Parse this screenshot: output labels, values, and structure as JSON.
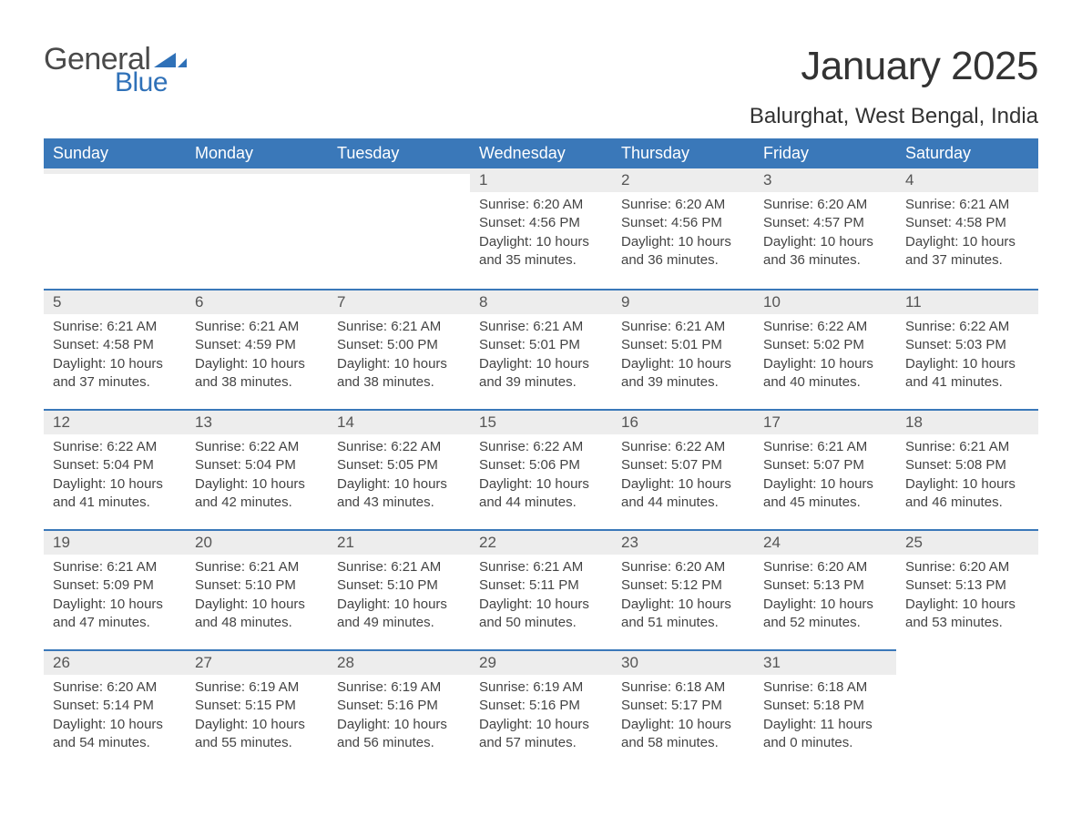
{
  "logo": {
    "general": "General",
    "blue": "Blue",
    "general_color": "#4a4a4a",
    "blue_color": "#2f71b8",
    "flag_color": "#2f71b8"
  },
  "title": "January 2025",
  "location": "Balurghat, West Bengal, India",
  "theme": {
    "header_bg": "#3a78b9",
    "header_text": "#ffffff",
    "daynum_bg": "#ededed",
    "row_divider": "#3a78b9",
    "body_text": "#444444",
    "page_bg": "#ffffff"
  },
  "weekdays": [
    "Sunday",
    "Monday",
    "Tuesday",
    "Wednesday",
    "Thursday",
    "Friday",
    "Saturday"
  ],
  "weeks": [
    [
      null,
      null,
      null,
      {
        "d": "1",
        "sunrise": "6:20 AM",
        "sunset": "4:56 PM",
        "daylight": "10 hours and 35 minutes."
      },
      {
        "d": "2",
        "sunrise": "6:20 AM",
        "sunset": "4:56 PM",
        "daylight": "10 hours and 36 minutes."
      },
      {
        "d": "3",
        "sunrise": "6:20 AM",
        "sunset": "4:57 PM",
        "daylight": "10 hours and 36 minutes."
      },
      {
        "d": "4",
        "sunrise": "6:21 AM",
        "sunset": "4:58 PM",
        "daylight": "10 hours and 37 minutes."
      }
    ],
    [
      {
        "d": "5",
        "sunrise": "6:21 AM",
        "sunset": "4:58 PM",
        "daylight": "10 hours and 37 minutes."
      },
      {
        "d": "6",
        "sunrise": "6:21 AM",
        "sunset": "4:59 PM",
        "daylight": "10 hours and 38 minutes."
      },
      {
        "d": "7",
        "sunrise": "6:21 AM",
        "sunset": "5:00 PM",
        "daylight": "10 hours and 38 minutes."
      },
      {
        "d": "8",
        "sunrise": "6:21 AM",
        "sunset": "5:01 PM",
        "daylight": "10 hours and 39 minutes."
      },
      {
        "d": "9",
        "sunrise": "6:21 AM",
        "sunset": "5:01 PM",
        "daylight": "10 hours and 39 minutes."
      },
      {
        "d": "10",
        "sunrise": "6:22 AM",
        "sunset": "5:02 PM",
        "daylight": "10 hours and 40 minutes."
      },
      {
        "d": "11",
        "sunrise": "6:22 AM",
        "sunset": "5:03 PM",
        "daylight": "10 hours and 41 minutes."
      }
    ],
    [
      {
        "d": "12",
        "sunrise": "6:22 AM",
        "sunset": "5:04 PM",
        "daylight": "10 hours and 41 minutes."
      },
      {
        "d": "13",
        "sunrise": "6:22 AM",
        "sunset": "5:04 PM",
        "daylight": "10 hours and 42 minutes."
      },
      {
        "d": "14",
        "sunrise": "6:22 AM",
        "sunset": "5:05 PM",
        "daylight": "10 hours and 43 minutes."
      },
      {
        "d": "15",
        "sunrise": "6:22 AM",
        "sunset": "5:06 PM",
        "daylight": "10 hours and 44 minutes."
      },
      {
        "d": "16",
        "sunrise": "6:22 AM",
        "sunset": "5:07 PM",
        "daylight": "10 hours and 44 minutes."
      },
      {
        "d": "17",
        "sunrise": "6:21 AM",
        "sunset": "5:07 PM",
        "daylight": "10 hours and 45 minutes."
      },
      {
        "d": "18",
        "sunrise": "6:21 AM",
        "sunset": "5:08 PM",
        "daylight": "10 hours and 46 minutes."
      }
    ],
    [
      {
        "d": "19",
        "sunrise": "6:21 AM",
        "sunset": "5:09 PM",
        "daylight": "10 hours and 47 minutes."
      },
      {
        "d": "20",
        "sunrise": "6:21 AM",
        "sunset": "5:10 PM",
        "daylight": "10 hours and 48 minutes."
      },
      {
        "d": "21",
        "sunrise": "6:21 AM",
        "sunset": "5:10 PM",
        "daylight": "10 hours and 49 minutes."
      },
      {
        "d": "22",
        "sunrise": "6:21 AM",
        "sunset": "5:11 PM",
        "daylight": "10 hours and 50 minutes."
      },
      {
        "d": "23",
        "sunrise": "6:20 AM",
        "sunset": "5:12 PM",
        "daylight": "10 hours and 51 minutes."
      },
      {
        "d": "24",
        "sunrise": "6:20 AM",
        "sunset": "5:13 PM",
        "daylight": "10 hours and 52 minutes."
      },
      {
        "d": "25",
        "sunrise": "6:20 AM",
        "sunset": "5:13 PM",
        "daylight": "10 hours and 53 minutes."
      }
    ],
    [
      {
        "d": "26",
        "sunrise": "6:20 AM",
        "sunset": "5:14 PM",
        "daylight": "10 hours and 54 minutes."
      },
      {
        "d": "27",
        "sunrise": "6:19 AM",
        "sunset": "5:15 PM",
        "daylight": "10 hours and 55 minutes."
      },
      {
        "d": "28",
        "sunrise": "6:19 AM",
        "sunset": "5:16 PM",
        "daylight": "10 hours and 56 minutes."
      },
      {
        "d": "29",
        "sunrise": "6:19 AM",
        "sunset": "5:16 PM",
        "daylight": "10 hours and 57 minutes."
      },
      {
        "d": "30",
        "sunrise": "6:18 AM",
        "sunset": "5:17 PM",
        "daylight": "10 hours and 58 minutes."
      },
      {
        "d": "31",
        "sunrise": "6:18 AM",
        "sunset": "5:18 PM",
        "daylight": "11 hours and 0 minutes."
      },
      null
    ]
  ],
  "labels": {
    "sunrise": "Sunrise: ",
    "sunset": "Sunset: ",
    "daylight": "Daylight: "
  }
}
